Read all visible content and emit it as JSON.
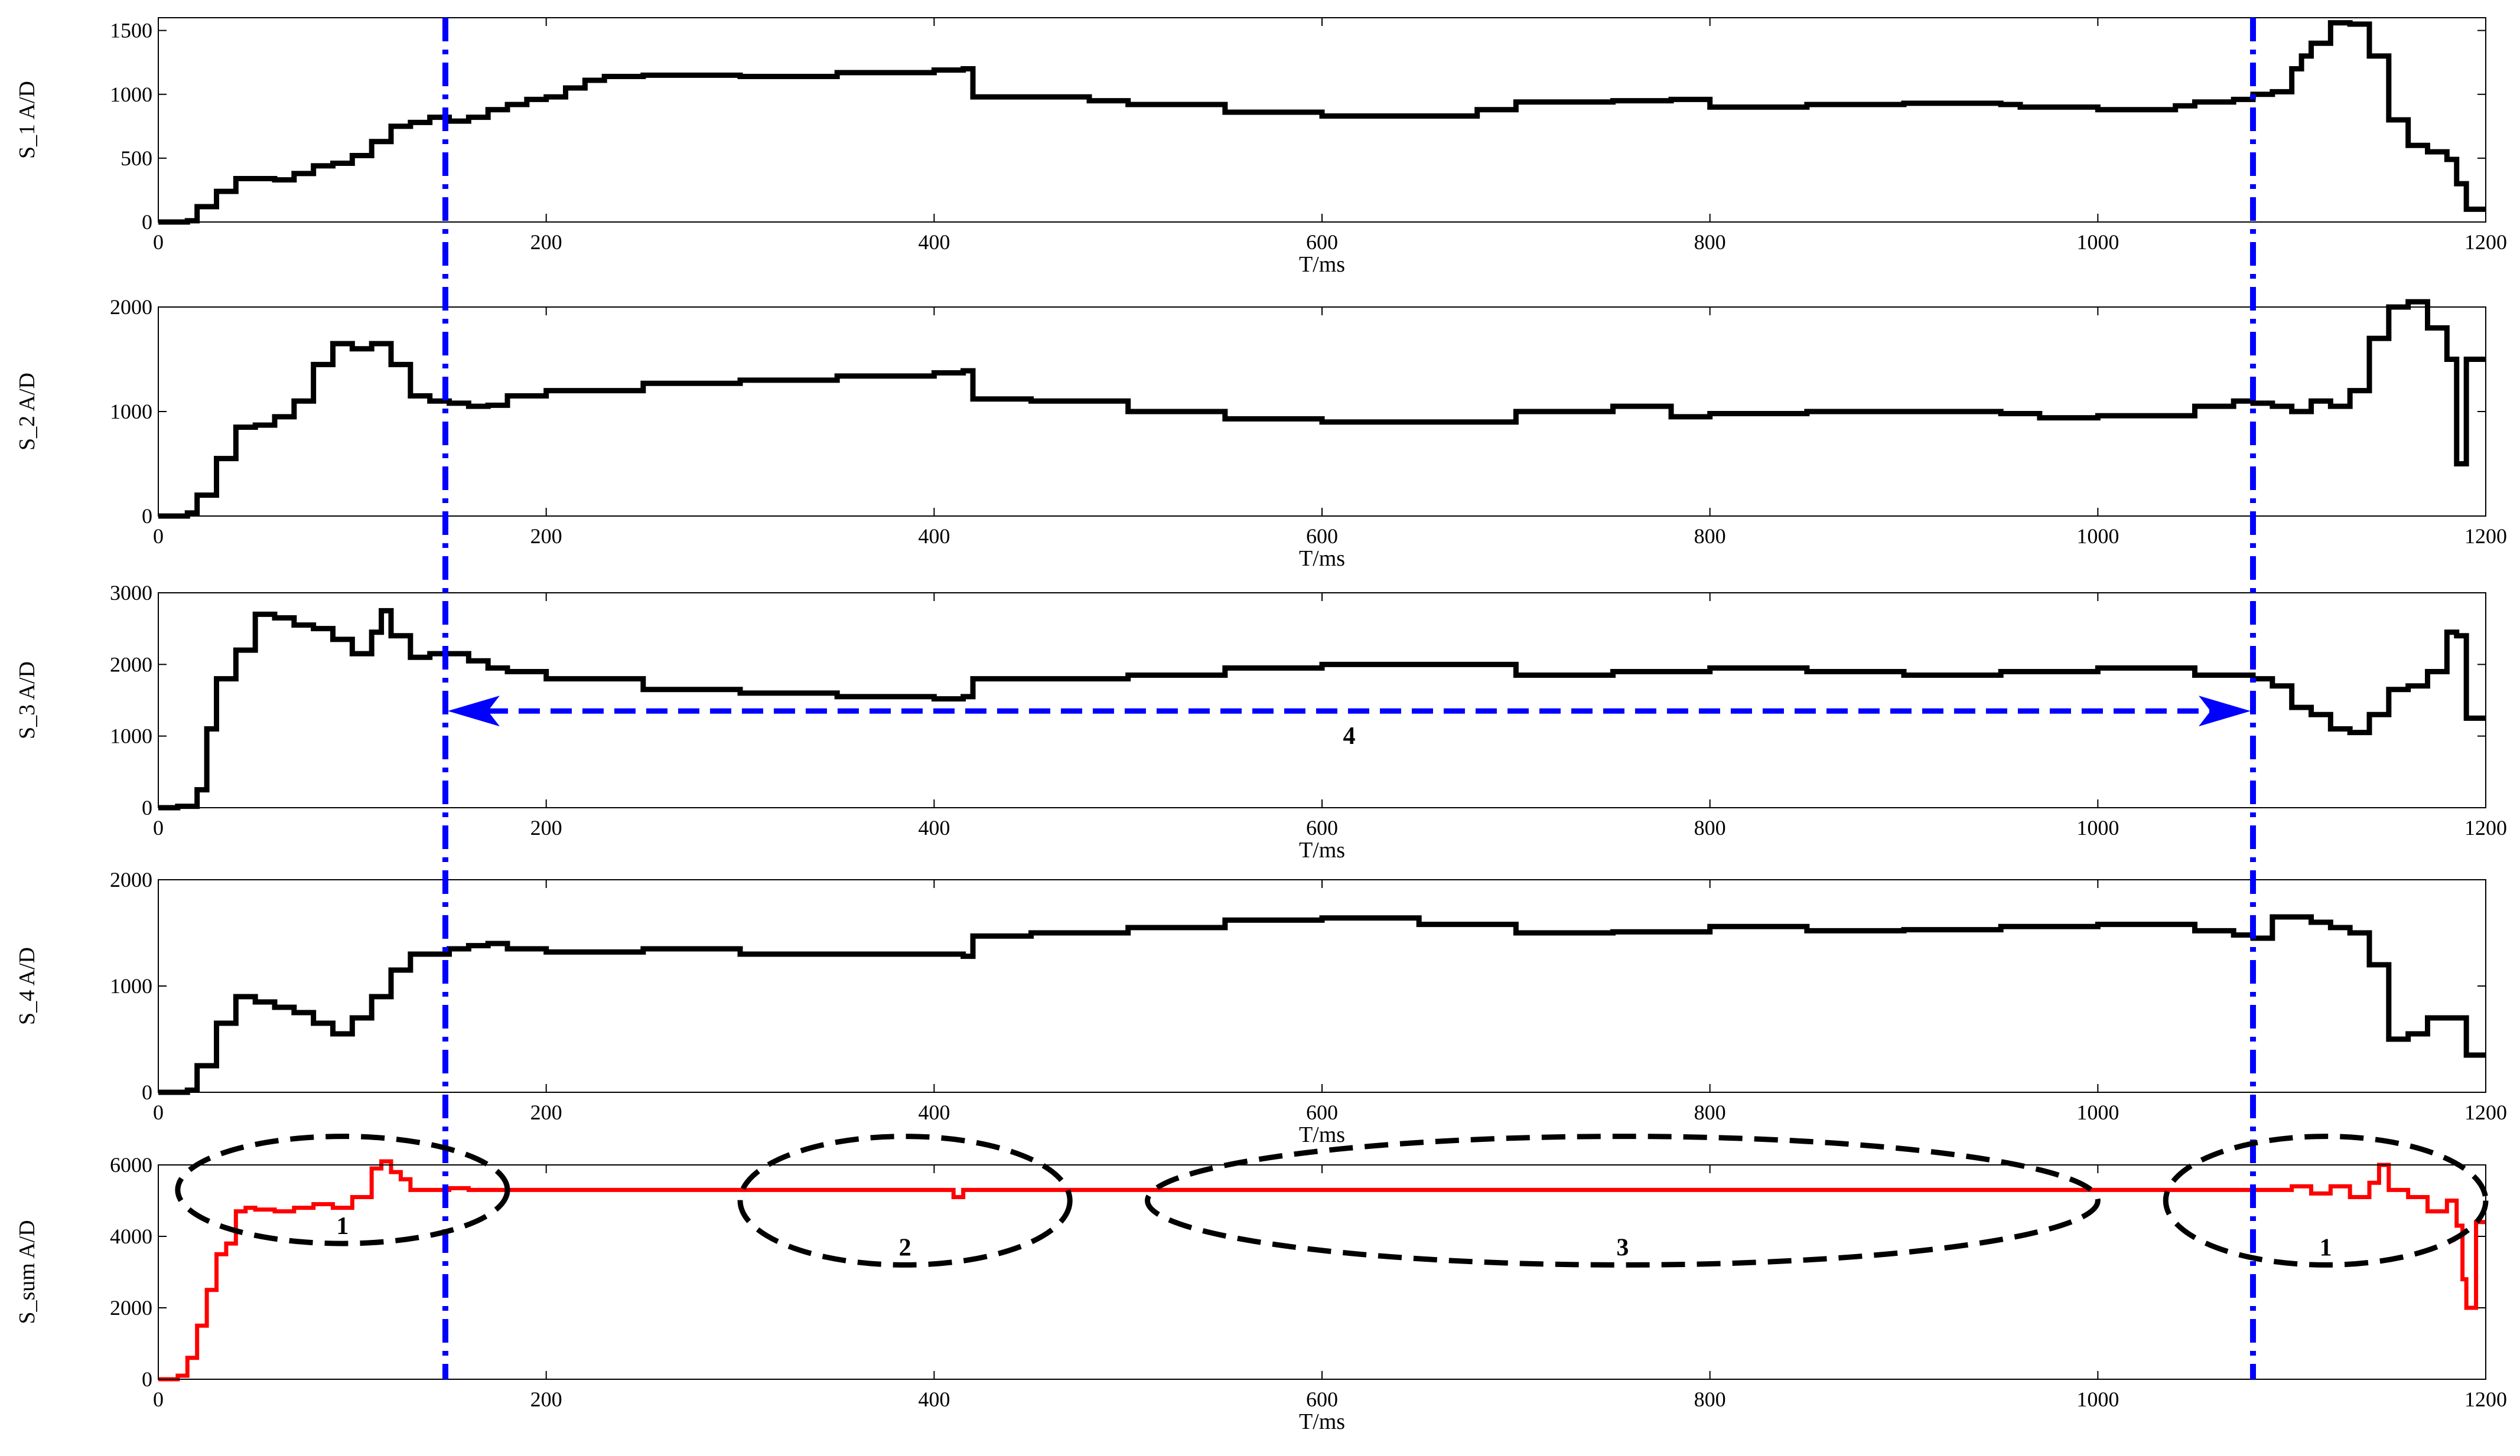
{
  "figure": {
    "colors": {
      "signal": "#000000",
      "sum": "#ff0000",
      "markers": "#0000ff",
      "ellipses": "#000000"
    }
  },
  "chart_data": [
    {
      "type": "line",
      "ylabel": "S_1  A/D",
      "xlabel": "T/ms",
      "xlim": [
        0,
        1200
      ],
      "ylim": [
        0,
        1600
      ],
      "xticks": [
        0,
        200,
        400,
        600,
        800,
        1000,
        1200
      ],
      "yticks": [
        0,
        500,
        1000,
        1500
      ],
      "series": [
        {
          "color": "#000000",
          "x": [
            0,
            15,
            20,
            30,
            40,
            50,
            60,
            70,
            80,
            90,
            100,
            110,
            120,
            130,
            140,
            150,
            160,
            170,
            180,
            190,
            200,
            210,
            220,
            230,
            250,
            300,
            350,
            400,
            415,
            420,
            450,
            480,
            500,
            550,
            600,
            650,
            680,
            700,
            750,
            780,
            800,
            850,
            900,
            950,
            960,
            1000,
            1040,
            1050,
            1070,
            1080,
            1090,
            1100,
            1105,
            1110,
            1120,
            1130,
            1140,
            1150,
            1160,
            1170,
            1180,
            1185,
            1190
          ],
          "values": [
            0,
            10,
            120,
            240,
            340,
            340,
            330,
            380,
            440,
            460,
            520,
            630,
            750,
            780,
            820,
            790,
            820,
            880,
            920,
            960,
            980,
            1050,
            1110,
            1140,
            1150,
            1140,
            1170,
            1190,
            1200,
            980,
            980,
            950,
            920,
            860,
            830,
            830,
            880,
            940,
            950,
            960,
            900,
            920,
            930,
            920,
            900,
            880,
            910,
            940,
            960,
            1000,
            1020,
            1200,
            1300,
            1400,
            1560,
            1550,
            1300,
            800,
            600,
            550,
            490,
            300,
            100
          ]
        }
      ]
    },
    {
      "type": "line",
      "ylabel": "S_2  A/D",
      "xlabel": "T/ms",
      "xlim": [
        0,
        1200
      ],
      "ylim": [
        0,
        2000
      ],
      "xticks": [
        0,
        200,
        400,
        600,
        800,
        1000,
        1200
      ],
      "yticks": [
        0,
        1000,
        2000
      ],
      "series": [
        {
          "color": "#000000",
          "x": [
            0,
            15,
            20,
            30,
            40,
            50,
            60,
            70,
            80,
            90,
            100,
            110,
            120,
            130,
            140,
            150,
            160,
            170,
            180,
            200,
            250,
            300,
            350,
            400,
            415,
            420,
            450,
            500,
            550,
            600,
            650,
            700,
            750,
            780,
            800,
            850,
            900,
            950,
            970,
            1000,
            1050,
            1070,
            1080,
            1090,
            1100,
            1110,
            1120,
            1130,
            1140,
            1150,
            1160,
            1170,
            1180,
            1185,
            1190
          ],
          "values": [
            0,
            30,
            200,
            550,
            850,
            870,
            950,
            1100,
            1450,
            1650,
            1600,
            1650,
            1450,
            1150,
            1100,
            1080,
            1050,
            1060,
            1150,
            1200,
            1270,
            1300,
            1340,
            1370,
            1390,
            1120,
            1100,
            1000,
            930,
            900,
            900,
            1000,
            1050,
            950,
            980,
            1000,
            1000,
            980,
            940,
            960,
            1050,
            1100,
            1080,
            1050,
            1000,
            1100,
            1050,
            1200,
            1700,
            2000,
            2050,
            1800,
            1500,
            500,
            1500
          ]
        }
      ]
    },
    {
      "type": "line",
      "ylabel": "S_3  A/D",
      "xlabel": "T/ms",
      "xlim": [
        0,
        1200
      ],
      "ylim": [
        0,
        3000
      ],
      "xticks": [
        0,
        200,
        400,
        600,
        800,
        1000,
        1200
      ],
      "yticks": [
        0,
        1000,
        2000,
        3000
      ],
      "series": [
        {
          "color": "#000000",
          "x": [
            0,
            10,
            20,
            25,
            30,
            40,
            50,
            60,
            70,
            80,
            90,
            100,
            110,
            115,
            120,
            130,
            140,
            150,
            160,
            170,
            180,
            200,
            250,
            300,
            350,
            400,
            415,
            420,
            450,
            500,
            550,
            600,
            650,
            700,
            750,
            800,
            850,
            900,
            950,
            1000,
            1050,
            1080,
            1090,
            1100,
            1110,
            1120,
            1130,
            1140,
            1150,
            1160,
            1170,
            1180,
            1185,
            1190
          ],
          "values": [
            0,
            20,
            250,
            1100,
            1800,
            2200,
            2700,
            2650,
            2550,
            2500,
            2350,
            2150,
            2450,
            2750,
            2400,
            2100,
            2150,
            2150,
            2050,
            1950,
            1900,
            1800,
            1650,
            1600,
            1550,
            1520,
            1550,
            1800,
            1800,
            1850,
            1950,
            2000,
            2000,
            1850,
            1900,
            1950,
            1900,
            1850,
            1900,
            1950,
            1850,
            1800,
            1700,
            1400,
            1300,
            1100,
            1050,
            1300,
            1650,
            1700,
            1900,
            2450,
            2400,
            1250
          ]
        }
      ]
    },
    {
      "type": "line",
      "ylabel": "S_4  A/D",
      "xlabel": "T/ms",
      "xlim": [
        0,
        1200
      ],
      "ylim": [
        0,
        2000
      ],
      "xticks": [
        0,
        200,
        400,
        600,
        800,
        1000,
        1200
      ],
      "yticks": [
        0,
        1000,
        2000
      ],
      "series": [
        {
          "color": "#000000",
          "x": [
            0,
            15,
            20,
            30,
            40,
            50,
            60,
            70,
            80,
            90,
            100,
            110,
            120,
            130,
            140,
            150,
            160,
            170,
            180,
            200,
            250,
            300,
            350,
            400,
            415,
            420,
            450,
            500,
            550,
            600,
            650,
            700,
            750,
            800,
            850,
            900,
            950,
            1000,
            1050,
            1070,
            1080,
            1090,
            1100,
            1110,
            1120,
            1130,
            1140,
            1150,
            1160,
            1170,
            1180,
            1190
          ],
          "values": [
            0,
            20,
            250,
            650,
            900,
            850,
            800,
            750,
            650,
            550,
            700,
            900,
            1150,
            1300,
            1300,
            1350,
            1380,
            1400,
            1350,
            1320,
            1350,
            1300,
            1300,
            1300,
            1280,
            1470,
            1500,
            1550,
            1620,
            1640,
            1580,
            1500,
            1510,
            1560,
            1520,
            1530,
            1560,
            1580,
            1520,
            1480,
            1450,
            1650,
            1650,
            1600,
            1550,
            1500,
            1200,
            500,
            550,
            700,
            700,
            350
          ]
        }
      ]
    },
    {
      "type": "line",
      "ylabel": "S_sum  A/D",
      "xlabel": "T/ms",
      "xlim": [
        0,
        1200
      ],
      "ylim": [
        0,
        6000
      ],
      "xticks": [
        0,
        200,
        400,
        600,
        800,
        1000,
        1200
      ],
      "yticks": [
        0,
        2000,
        4000,
        6000
      ],
      "series": [
        {
          "color": "#ff0000",
          "x": [
            0,
            10,
            15,
            20,
            25,
            30,
            35,
            40,
            45,
            50,
            60,
            70,
            80,
            90,
            100,
            110,
            115,
            120,
            125,
            130,
            140,
            150,
            160,
            200,
            300,
            400,
            410,
            415,
            420,
            500,
            600,
            700,
            800,
            900,
            1000,
            1050,
            1080,
            1100,
            1110,
            1120,
            1130,
            1140,
            1145,
            1150,
            1160,
            1170,
            1180,
            1185,
            1188,
            1190,
            1195,
            1200
          ],
          "values": [
            0,
            100,
            600,
            1500,
            2500,
            3500,
            3800,
            4700,
            4800,
            4750,
            4700,
            4800,
            4900,
            4800,
            5100,
            5900,
            6100,
            5800,
            5600,
            5300,
            5300,
            5350,
            5300,
            5300,
            5300,
            5300,
            5100,
            5300,
            5300,
            5300,
            5300,
            5300,
            5300,
            5300,
            5300,
            5300,
            5300,
            5400,
            5200,
            5400,
            5100,
            5500,
            6000,
            5300,
            5100,
            4700,
            5000,
            4300,
            2800,
            2000,
            4400,
            4400
          ]
        }
      ]
    }
  ],
  "annotations": {
    "marker_lines_x": [
      148,
      1080
    ],
    "arrow": {
      "from": 148,
      "to": 1080,
      "y": 1350,
      "panel": 2,
      "label": "4"
    },
    "ellipses": [
      {
        "label": "1",
        "x0": 10,
        "x1": 180,
        "y0": 3800,
        "y1": 6800
      },
      {
        "label": "2",
        "x0": 300,
        "x1": 470,
        "y0": 3200,
        "y1": 6800
      },
      {
        "label": "3",
        "x0": 510,
        "x1": 1000,
        "y0": 3200,
        "y1": 6800
      },
      {
        "label": "1",
        "x0": 1035,
        "x1": 1200,
        "y0": 3200,
        "y1": 6800
      }
    ]
  }
}
